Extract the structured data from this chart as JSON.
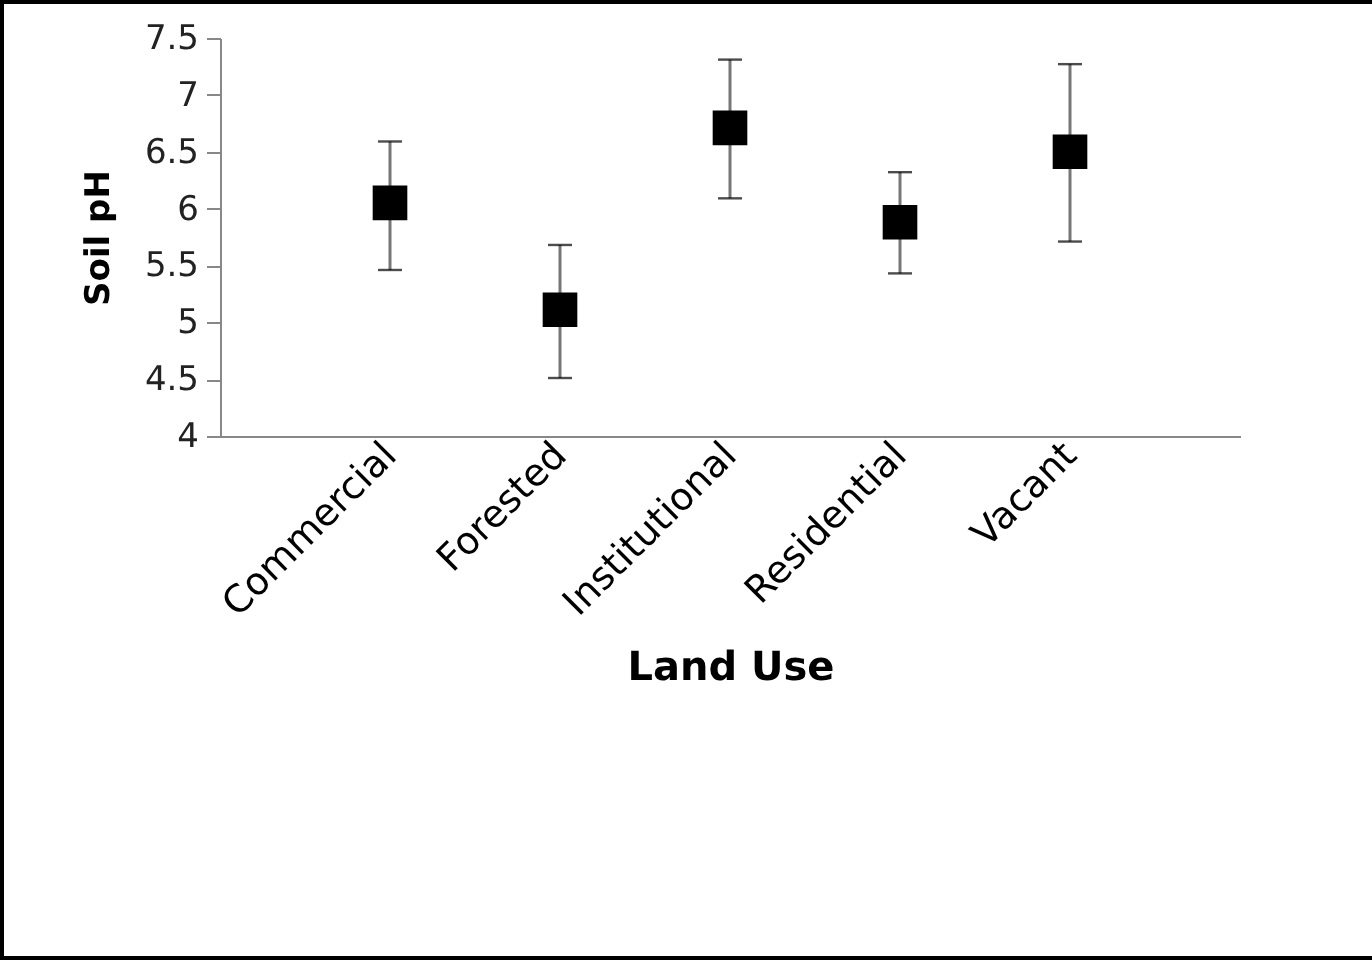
{
  "chart_data": {
    "type": "scatter",
    "xlabel": "Land Use",
    "ylabel": "Soil pH",
    "categories": [
      "Commercial",
      "Forested",
      "Institutional",
      "Residential",
      "Vacant"
    ],
    "values": [
      6.05,
      5.11,
      6.71,
      5.88,
      6.5
    ],
    "errors": [
      [
        5.46,
        6.59
      ],
      [
        4.51,
        5.68
      ],
      [
        6.09,
        7.31
      ],
      [
        5.43,
        6.32
      ],
      [
        5.71,
        7.27
      ]
    ],
    "color": "#000000",
    "marker": "square",
    "ylim": [
      4,
      7.5
    ],
    "yticks": [
      4,
      4.5,
      5,
      5.5,
      6,
      6.5,
      7,
      7.5
    ]
  }
}
